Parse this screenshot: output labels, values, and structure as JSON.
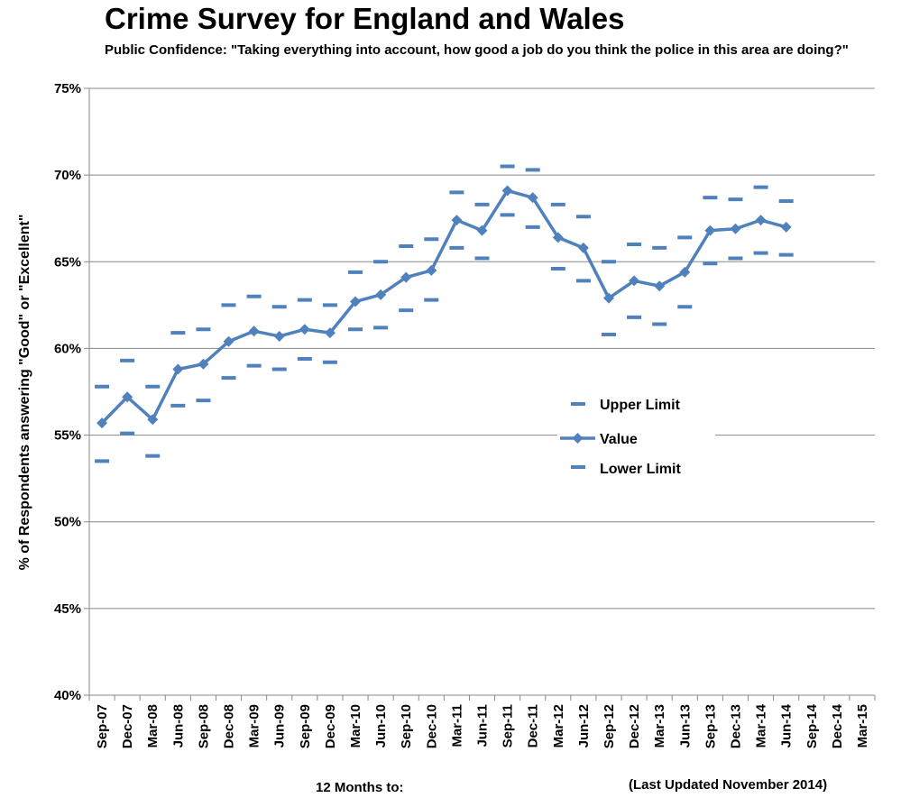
{
  "chart_data": {
    "type": "line",
    "title": "Crime Survey for England and Wales",
    "subtitle": "Public Confidence: \"Taking everything into account, how good a job do you think the police in this area are doing?\"",
    "xlabel": "12 Months to:",
    "ylabel": "% of Respondents answering \"Good\" or \"Excellent\"",
    "footnote": "(Last Updated November 2014)",
    "ylim": [
      40,
      75
    ],
    "yticks": [
      "40%",
      "45%",
      "50%",
      "55%",
      "60%",
      "65%",
      "70%",
      "75%"
    ],
    "grid": true,
    "legend_position": "right-center",
    "categories": [
      "Sep-07",
      "Dec-07",
      "Mar-08",
      "Jun-08",
      "Sep-08",
      "Dec-08",
      "Mar-09",
      "Jun-09",
      "Sep-09",
      "Dec-09",
      "Mar-10",
      "Jun-10",
      "Sep-10",
      "Dec-10",
      "Mar-11",
      "Jun-11",
      "Sep-11",
      "Dec-11",
      "Mar-12",
      "Jun-12",
      "Sep-12",
      "Dec-12",
      "Mar-13",
      "Jun-13",
      "Sep-13",
      "Dec-13",
      "Mar-14",
      "Jun-14",
      "Sep-14",
      "Dec-14",
      "Mar-15"
    ],
    "series": [
      {
        "name": "Upper Limit",
        "color": "#4f81bd",
        "style": "dash-marker",
        "values": [
          57.8,
          59.3,
          57.8,
          60.9,
          61.1,
          62.5,
          63.0,
          62.4,
          62.8,
          62.5,
          64.4,
          65.0,
          65.9,
          66.3,
          69.0,
          68.3,
          70.5,
          70.3,
          68.3,
          67.6,
          65.0,
          66.0,
          65.8,
          66.4,
          68.7,
          68.6,
          69.3,
          68.5,
          null,
          null,
          null
        ]
      },
      {
        "name": "Value",
        "color": "#4f81bd",
        "style": "line-diamond",
        "values": [
          55.7,
          57.2,
          55.9,
          58.8,
          59.1,
          60.4,
          61.0,
          60.7,
          61.1,
          60.9,
          62.7,
          63.1,
          64.1,
          64.5,
          67.4,
          66.8,
          69.1,
          68.7,
          66.4,
          65.8,
          62.9,
          63.9,
          63.6,
          64.4,
          66.8,
          66.9,
          67.4,
          67.0,
          null,
          null,
          null
        ]
      },
      {
        "name": "Lower Limit",
        "color": "#4f81bd",
        "style": "dash-marker",
        "values": [
          53.5,
          55.1,
          53.8,
          56.7,
          57.0,
          58.3,
          59.0,
          58.8,
          59.4,
          59.2,
          61.1,
          61.2,
          62.2,
          62.8,
          65.8,
          65.2,
          67.7,
          67.0,
          64.6,
          63.9,
          60.8,
          61.8,
          61.4,
          62.4,
          64.9,
          65.2,
          65.5,
          65.4,
          null,
          null,
          null
        ]
      }
    ]
  }
}
